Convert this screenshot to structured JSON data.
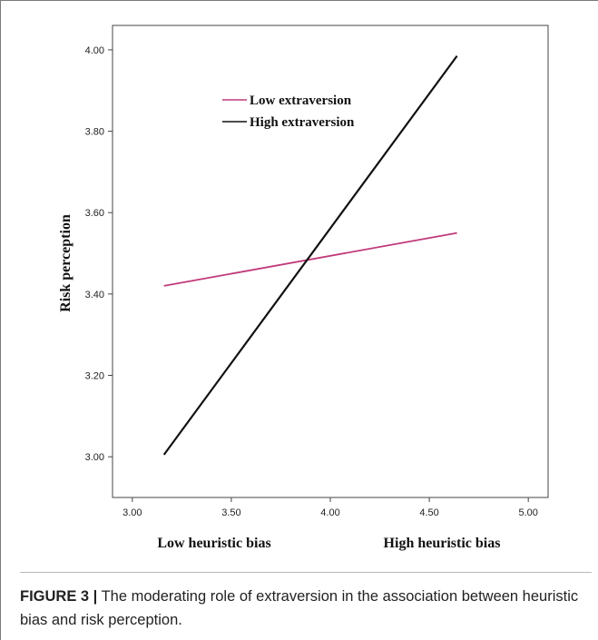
{
  "chart_data": {
    "type": "line",
    "xlabel": "",
    "ylabel": "Risk perception",
    "xlim": [
      2.9,
      5.1
    ],
    "ylim": [
      2.9,
      4.06
    ],
    "xticks": [
      "3.00",
      "3.50",
      "4.00",
      "4.50",
      "5.00"
    ],
    "yticks": [
      "3.00",
      "3.20",
      "3.40",
      "3.60",
      "3.80",
      "4.00"
    ],
    "x_category_labels": [
      "Low heuristic bias",
      "High heuristic bias"
    ],
    "grid": false,
    "legend_position": "top-center",
    "series": [
      {
        "name": "Low extraversion",
        "color": "#c0397a",
        "x": [
          3.16,
          4.64
        ],
        "y": [
          3.42,
          3.55
        ]
      },
      {
        "name": "High extraversion",
        "color": "#111111",
        "x": [
          3.16,
          4.64
        ],
        "y": [
          3.005,
          3.985
        ]
      }
    ]
  },
  "caption": {
    "label": "FIGURE 3 |",
    "text": " The moderating role of extraversion in the association between heuristic bias and risk perception."
  }
}
